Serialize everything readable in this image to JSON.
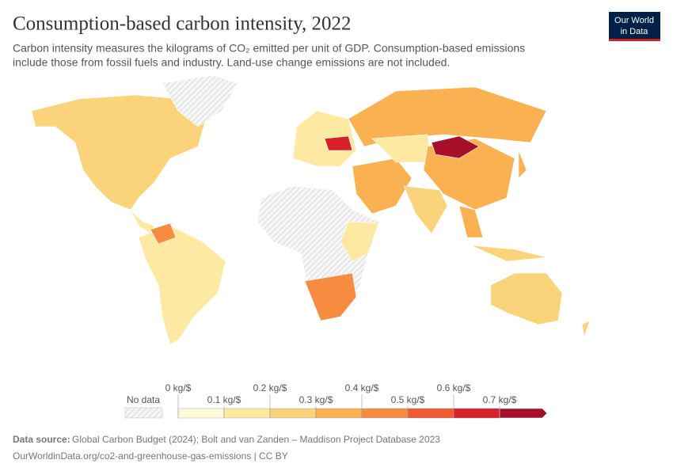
{
  "chart_data": {
    "type": "choropleth",
    "title": "Consumption-based carbon intensity, 2022",
    "subtitle": [
      "Carbon intensity measures the kilograms of CO₂ emitted per unit of GDP. Consumption-based emissions",
      "include those from fossil fuels and industry. Land-use change emissions are not included."
    ],
    "logo": [
      "Our World",
      "in Data"
    ],
    "legend": {
      "no_data_label": "No data",
      "ticks": [
        {
          "value": 0,
          "label": "0 kg/$"
        },
        {
          "value": 0.1,
          "label": "0.1 kg/$"
        },
        {
          "value": 0.2,
          "label": "0.2 kg/$"
        },
        {
          "value": 0.3,
          "label": "0.3 kg/$"
        },
        {
          "value": 0.4,
          "label": "0.4 kg/$"
        },
        {
          "value": 0.5,
          "label": "0.5 kg/$"
        },
        {
          "value": 0.6,
          "label": "0.6 kg/$"
        },
        {
          "value": 0.7,
          "label": "0.7 kg/$"
        }
      ],
      "colors": [
        "#fffbd8",
        "#fde9a1",
        "#fbd37a",
        "#f9b152",
        "#f78b40",
        "#f05a30",
        "#d8202a",
        "#a50f2a"
      ]
    },
    "source_label": "Data source:",
    "source": "Global Carbon Budget (2024); Bolt and van Zanden – Maddison Project Database 2023",
    "url": "OurWorldinData.org/co2-and-greenhouse-gas-emissions | CC BY"
  }
}
